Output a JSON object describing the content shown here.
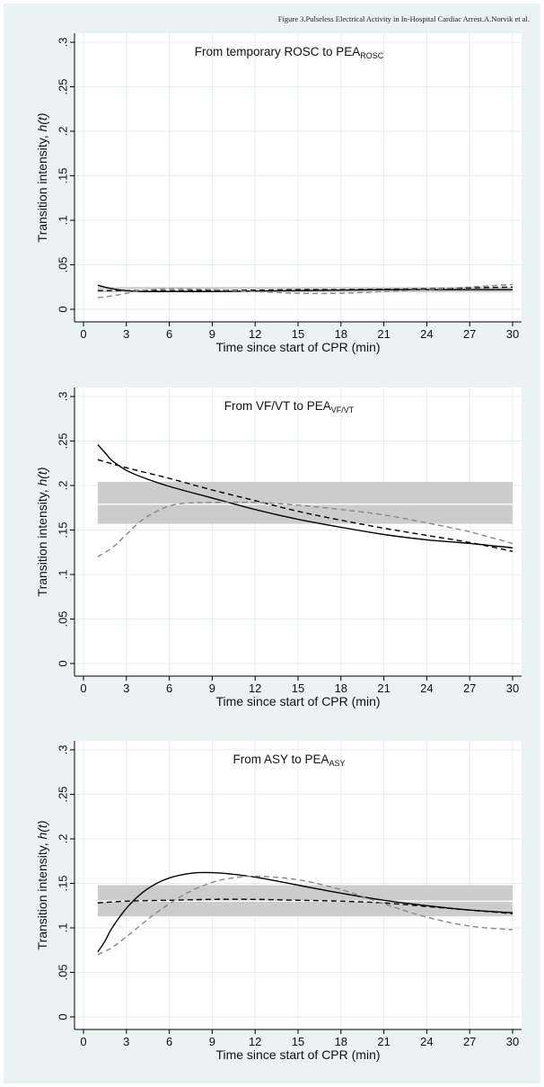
{
  "header": "Figure 3.Pulseless Electrical Activity in In-Hospital Cardiac Arrest.A.Norvik et al.",
  "chart_data": [
    {
      "type": "line",
      "title_main": "From temporary ROSC to PEA",
      "title_sub": "ROSC",
      "xlabel": "Time since start of CPR (min)",
      "ylabel_main": "Transition intensity, ",
      "ylabel_italic": "h(t)",
      "xlim": [
        0,
        30
      ],
      "ylim": [
        0,
        0.3
      ],
      "xticks": [
        "0",
        "3",
        "6",
        "9",
        "12",
        "15",
        "18",
        "21",
        "24",
        "27",
        "30"
      ],
      "yticks": [
        "0",
        ".05",
        ".1",
        ".15",
        ".2",
        ".25",
        ".3"
      ],
      "band": {
        "lower": 0.019,
        "center": 0.022,
        "upper": 0.025
      },
      "series": [
        {
          "style": "solid",
          "color": "#000000",
          "x": [
            1,
            2,
            3,
            4,
            6,
            9,
            12,
            15,
            18,
            21,
            24,
            27,
            30
          ],
          "y": [
            0.027,
            0.023,
            0.021,
            0.02,
            0.02,
            0.02,
            0.0205,
            0.021,
            0.0215,
            0.022,
            0.022,
            0.022,
            0.022
          ]
        },
        {
          "style": "dashed",
          "color": "#000000",
          "x": [
            1,
            3,
            6,
            9,
            12,
            15,
            18,
            21,
            24,
            27,
            30
          ],
          "y": [
            0.021,
            0.021,
            0.021,
            0.0212,
            0.0215,
            0.022,
            0.022,
            0.0225,
            0.023,
            0.024,
            0.025
          ]
        },
        {
          "style": "dashed",
          "color": "#888888",
          "x": [
            1,
            2,
            3,
            4,
            6,
            9,
            12,
            15,
            18,
            21,
            24,
            27,
            30
          ],
          "y": [
            0.013,
            0.015,
            0.018,
            0.021,
            0.023,
            0.022,
            0.02,
            0.018,
            0.018,
            0.02,
            0.022,
            0.025,
            0.028
          ]
        }
      ]
    },
    {
      "type": "line",
      "title_main": "From VF/VT to PEA",
      "title_sub": "VF/VT",
      "xlabel": "Time since start of CPR (min)",
      "ylabel_main": "Transition intensity, ",
      "ylabel_italic": "h(t)",
      "xlim": [
        0,
        30
      ],
      "ylim": [
        0,
        0.3
      ],
      "xticks": [
        "0",
        "3",
        "6",
        "9",
        "12",
        "15",
        "18",
        "21",
        "24",
        "27",
        "30"
      ],
      "yticks": [
        "0",
        ".05",
        ".1",
        ".15",
        ".2",
        ".25",
        ".3"
      ],
      "band": {
        "lower": 0.157,
        "center": 0.179,
        "upper": 0.204
      },
      "series": [
        {
          "style": "solid",
          "color": "#000000",
          "x": [
            1,
            1.5,
            2,
            3,
            4,
            6,
            9,
            12,
            15,
            18,
            21,
            24,
            27,
            30
          ],
          "y": [
            0.246,
            0.237,
            0.228,
            0.217,
            0.21,
            0.199,
            0.186,
            0.173,
            0.162,
            0.153,
            0.145,
            0.139,
            0.135,
            0.13
          ]
        },
        {
          "style": "dashed",
          "color": "#000000",
          "x": [
            1,
            3,
            6,
            9,
            12,
            15,
            18,
            21,
            24,
            27,
            30
          ],
          "y": [
            0.229,
            0.22,
            0.208,
            0.195,
            0.183,
            0.171,
            0.161,
            0.152,
            0.144,
            0.136,
            0.126
          ]
        },
        {
          "style": "dashed",
          "color": "#888888",
          "x": [
            1,
            2,
            3,
            4,
            5,
            6,
            7,
            9,
            12,
            15,
            18,
            21,
            24,
            27,
            30
          ],
          "y": [
            0.12,
            0.13,
            0.145,
            0.16,
            0.17,
            0.177,
            0.18,
            0.181,
            0.181,
            0.178,
            0.173,
            0.167,
            0.158,
            0.148,
            0.135
          ]
        }
      ]
    },
    {
      "type": "line",
      "title_main": "From ASY to PEA",
      "title_sub": "ASY",
      "xlabel": "Time since start of CPR (min)",
      "ylabel_main": "Transition intensity, ",
      "ylabel_italic": "h(t)",
      "xlim": [
        0,
        30
      ],
      "ylim": [
        0,
        0.3
      ],
      "xticks": [
        "0",
        "3",
        "6",
        "9",
        "12",
        "15",
        "18",
        "21",
        "24",
        "27",
        "30"
      ],
      "yticks": [
        "0",
        ".05",
        ".1",
        ".15",
        ".2",
        ".25",
        ".3"
      ],
      "band": {
        "lower": 0.113,
        "center": 0.13,
        "upper": 0.148
      },
      "series": [
        {
          "style": "solid",
          "color": "#000000",
          "x": [
            1,
            1.5,
            2,
            3,
            4,
            5,
            6,
            7,
            8,
            9,
            10,
            12,
            15,
            18,
            21,
            24,
            27,
            30
          ],
          "y": [
            0.073,
            0.085,
            0.1,
            0.122,
            0.138,
            0.149,
            0.156,
            0.16,
            0.162,
            0.162,
            0.161,
            0.157,
            0.148,
            0.139,
            0.131,
            0.125,
            0.12,
            0.117
          ]
        },
        {
          "style": "dashed",
          "color": "#000000",
          "x": [
            1,
            3,
            6,
            9,
            12,
            15,
            18,
            21,
            24,
            27,
            30
          ],
          "y": [
            0.128,
            0.13,
            0.131,
            0.132,
            0.132,
            0.131,
            0.13,
            0.128,
            0.124,
            0.12,
            0.116
          ]
        },
        {
          "style": "dashed",
          "color": "#888888",
          "x": [
            1,
            2,
            3,
            4,
            5,
            6,
            7,
            8,
            9,
            10,
            12,
            15,
            18,
            21,
            24,
            27,
            30
          ],
          "y": [
            0.07,
            0.078,
            0.09,
            0.103,
            0.116,
            0.127,
            0.137,
            0.145,
            0.151,
            0.155,
            0.158,
            0.154,
            0.143,
            0.127,
            0.112,
            0.102,
            0.098
          ]
        }
      ]
    }
  ]
}
